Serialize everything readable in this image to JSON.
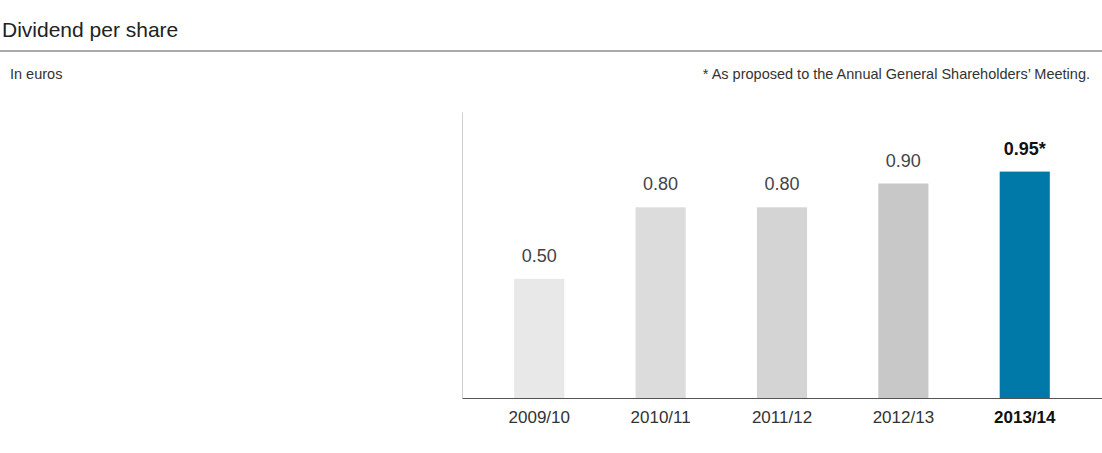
{
  "chart_data": {
    "type": "bar",
    "title": "Dividend per share",
    "subtitle": "In euros",
    "annotations": [
      "* As proposed to the Annual General Shareholders’ Meeting."
    ],
    "categories": [
      "2009/10",
      "2010/11",
      "2011/12",
      "2012/13",
      "2013/14"
    ],
    "values": [
      0.5,
      0.8,
      0.8,
      0.9,
      0.95
    ],
    "value_labels": [
      "0.50",
      "0.80",
      "0.80",
      "0.90",
      "0.95*"
    ],
    "colors": [
      "#e8e8e8",
      "#dcdcdc",
      "#d4d4d4",
      "#c8c8c8",
      "#0079a8"
    ],
    "ylim": [
      0,
      1.2
    ],
    "yticks": [],
    "grid": false,
    "data_labels": true,
    "tick_labels": "x"
  }
}
